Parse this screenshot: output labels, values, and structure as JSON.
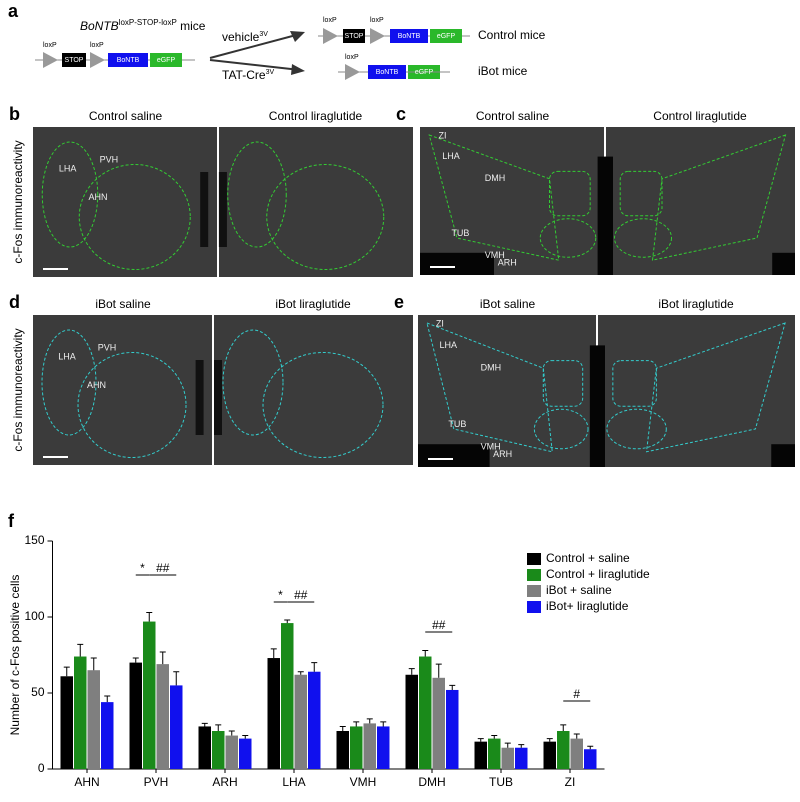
{
  "panel_a": {
    "label": "a",
    "strain": "BoNTB",
    "strain_sup": "loxP-STOP-loxP",
    "strain_suffix": " mice",
    "loxp": "loxP",
    "stop": "STOP",
    "bontb": "BoNTB",
    "egfp": "eGFP",
    "vehicle": "vehicle",
    "vehicle_sup": "3V",
    "tatcre": "TAT-Cre",
    "tatcre_sup": "3V",
    "control": "Control mice",
    "ibot": "iBot mice"
  },
  "panel_b": {
    "label": "b",
    "y_label": "c-Fos immunoreactivity",
    "titles": [
      "Control saline",
      "Control liraglutide"
    ],
    "regions": [
      "LHA",
      "PVH",
      "AHN"
    ]
  },
  "panel_c": {
    "label": "c",
    "titles": [
      "Control saline",
      "Control liraglutide"
    ],
    "regions": [
      "ZI",
      "LHA",
      "DMH",
      "TUB",
      "VMH",
      "ARH"
    ]
  },
  "panel_d": {
    "label": "d",
    "y_label": "c-Fos immunoreactivity",
    "titles": [
      "iBot saline",
      "iBot liraglutide"
    ],
    "regions": [
      "LHA",
      "PVH",
      "AHN"
    ]
  },
  "panel_e": {
    "label": "e",
    "titles": [
      "iBot saline",
      "iBot liraglutide"
    ],
    "regions": [
      "ZI",
      "LHA",
      "DMH",
      "TUB",
      "VMH",
      "ARH"
    ]
  },
  "chart_data": {
    "type": "bar",
    "label": "f",
    "y_label": "Number of c-Fos positive cells",
    "categories": [
      "AHN",
      "PVH",
      "ARH",
      "LHA",
      "VMH",
      "DMH",
      "TUB",
      "ZI"
    ],
    "series": [
      {
        "name": "Control + saline",
        "color": "#000000",
        "values": [
          61,
          70,
          28,
          73,
          25,
          62,
          18,
          18
        ],
        "errors": [
          6,
          3,
          2,
          6,
          3,
          4,
          2,
          2
        ]
      },
      {
        "name": "Control  + liraglutide",
        "color": "#1a8a1a",
        "values": [
          74,
          97,
          25,
          96,
          28,
          74,
          20,
          25
        ],
        "errors": [
          8,
          6,
          4,
          2,
          3,
          4,
          2,
          4
        ]
      },
      {
        "name": "iBot + saline",
        "color": "#7f7f7f",
        "values": [
          65,
          69,
          22,
          62,
          30,
          60,
          14,
          20
        ],
        "errors": [
          8,
          8,
          3,
          2,
          3,
          9,
          3,
          3
        ]
      },
      {
        "name": "iBot+ liraglutide",
        "color": "#1010ee",
        "values": [
          44,
          55,
          20,
          64,
          28,
          52,
          14,
          13
        ],
        "errors": [
          4,
          9,
          2,
          6,
          3,
          3,
          2,
          2
        ]
      }
    ],
    "annotations": [
      "*",
      "##",
      "*",
      "##",
      "##",
      "#"
    ],
    "ylim": [
      0,
      150
    ],
    "yticks": [
      0,
      50,
      100,
      150
    ]
  }
}
